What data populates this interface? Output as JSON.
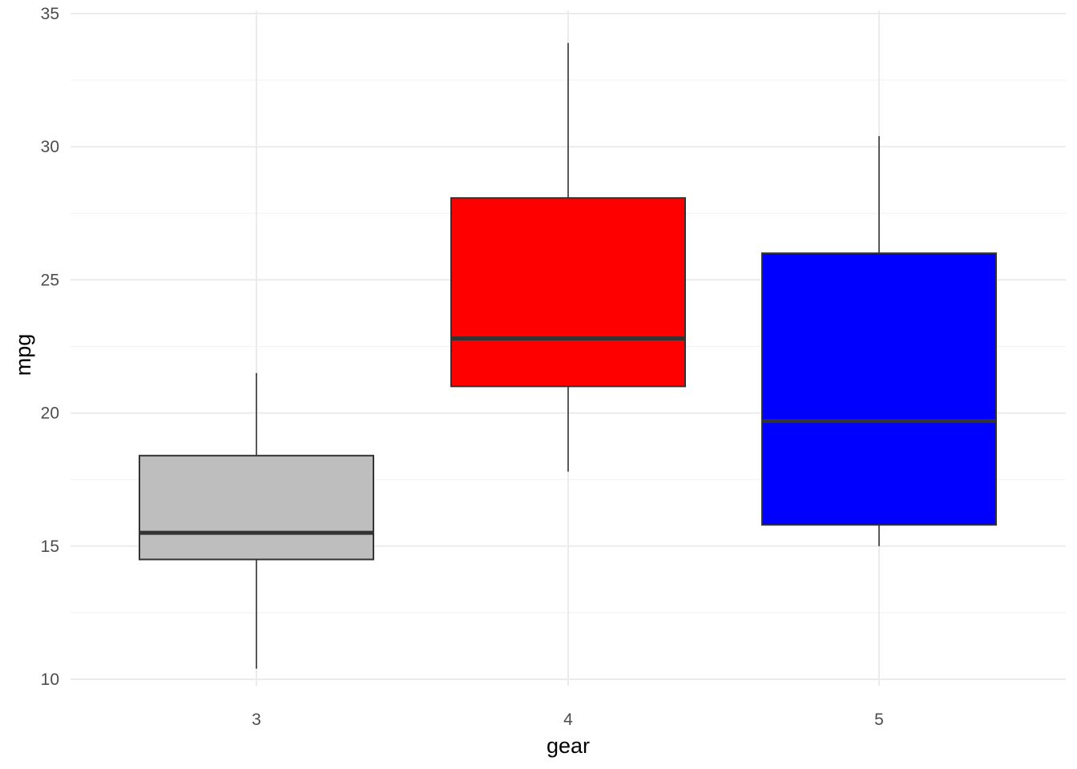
{
  "chart_data": {
    "type": "boxplot",
    "xlabel": "gear",
    "ylabel": "mpg",
    "ylim": [
      10,
      35
    ],
    "y_ticks": [
      10,
      15,
      20,
      25,
      30,
      35
    ],
    "y_tick_labels": [
      "10",
      "15",
      "20",
      "25",
      "30",
      "35"
    ],
    "categories": [
      "3",
      "4",
      "5"
    ],
    "grid": true,
    "legend": "none",
    "boxes": [
      {
        "category": "3",
        "min": 10.4,
        "q1": 14.5,
        "median": 15.5,
        "q3": 18.4,
        "max": 21.5,
        "fill": "#bebebe"
      },
      {
        "category": "4",
        "min": 17.8,
        "q1": 21.0,
        "median": 22.8,
        "q3": 28.075,
        "max": 33.9,
        "fill": "#ff0000"
      },
      {
        "category": "5",
        "min": 15.0,
        "q1": 15.8,
        "median": 19.7,
        "q3": 26.0,
        "max": 30.4,
        "fill": "#0000ff"
      }
    ],
    "colors": {
      "gridline": "#ebebeb",
      "outline": "#333333",
      "tick_text": "#4d4d4d",
      "axis_title": "#000000"
    }
  }
}
